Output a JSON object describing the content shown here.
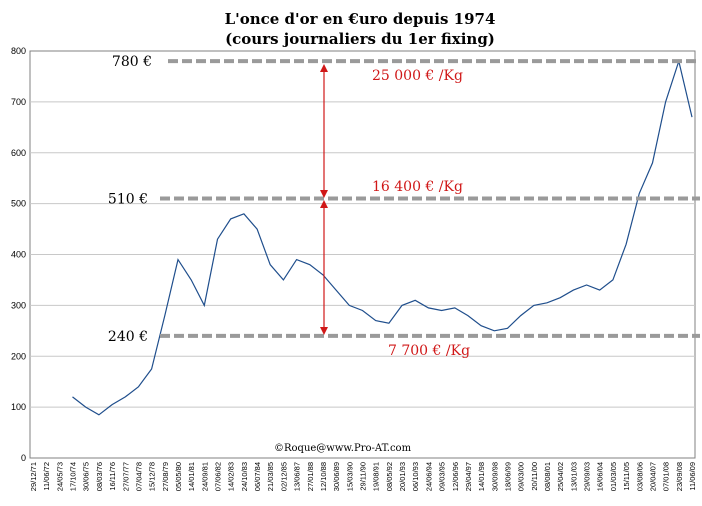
{
  "chart_data": {
    "type": "line",
    "title": "L'once d'or en €uro depuis 1974",
    "subtitle": "(cours journaliers du 1er fixing)",
    "xlabel": "",
    "ylabel": "",
    "ylim": [
      0,
      800
    ],
    "y_ticks": [
      0,
      100,
      200,
      300,
      400,
      500,
      600,
      700,
      800
    ],
    "grid": true,
    "x_ticks": [
      "29/12/71",
      "11/06/72",
      "24/05/73",
      "17/10/74",
      "30/06/75",
      "08/03/76",
      "16/11/76",
      "27/07/77",
      "07/04/78",
      "15/12/78",
      "27/08/79",
      "05/05/80",
      "14/01/81",
      "24/09/81",
      "07/06/82",
      "14/02/83",
      "24/10/83",
      "06/07/84",
      "21/03/85",
      "02/12/85",
      "13/06/87",
      "27/01/88",
      "12/10/88",
      "30/06/89",
      "15/03/90",
      "29/11/90",
      "19/08/91",
      "08/05/92",
      "20/01/93",
      "06/10/93",
      "24/06/94",
      "09/03/95",
      "12/06/96",
      "29/04/97",
      "14/01/98",
      "30/09/98",
      "18/06/99",
      "09/03/00",
      "20/11/00",
      "08/08/01",
      "25/04/02",
      "13/01/03",
      "29/09/03",
      "16/06/04",
      "01/03/05",
      "15/11/05",
      "03/08/06",
      "20/04/07",
      "07/01/08",
      "23/09/08",
      "11/06/09"
    ],
    "series": [
      {
        "x": [
          "17/10/74",
          "30/06/75",
          "08/03/76",
          "16/11/76",
          "27/07/77",
          "07/04/78",
          "15/12/78",
          "27/08/79",
          "05/05/80",
          "14/01/81",
          "24/09/81",
          "07/06/82",
          "14/02/83",
          "24/10/83",
          "06/07/84",
          "21/03/85",
          "02/12/85",
          "13/06/87",
          "27/01/88",
          "12/10/88",
          "30/06/89",
          "15/03/90",
          "29/11/90",
          "19/08/91",
          "08/05/92",
          "20/01/93",
          "06/10/93",
          "24/06/94",
          "09/03/95",
          "12/06/96",
          "29/04/97",
          "14/01/98",
          "30/09/98",
          "18/06/99",
          "09/03/00",
          "20/11/00",
          "08/08/01",
          "25/04/02",
          "13/01/03",
          "29/09/03",
          "16/06/04",
          "01/03/05",
          "15/11/05",
          "03/08/06",
          "20/04/07",
          "07/01/08",
          "23/09/08",
          "11/06/09"
        ],
        "values": [
          120,
          100,
          85,
          105,
          120,
          140,
          175,
          280,
          390,
          350,
          300,
          430,
          470,
          480,
          450,
          380,
          350,
          390,
          380,
          360,
          330,
          300,
          290,
          270,
          265,
          300,
          310,
          295,
          290,
          295,
          280,
          260,
          250,
          255,
          280,
          300,
          305,
          315,
          330,
          340,
          330,
          350,
          420,
          520,
          580,
          700,
          780,
          670
        ],
        "color": "#1f4e8c"
      }
    ],
    "reference_lines": [
      {
        "value": 780,
        "label": "780 €",
        "color": "#9a9a9a"
      },
      {
        "value": 510,
        "label": "510 €",
        "color": "#9a9a9a"
      },
      {
        "value": 240,
        "label": "240 €",
        "color": "#9a9a9a"
      }
    ],
    "annotations": [
      {
        "text": "25 000 € /Kg",
        "color": "#d01818"
      },
      {
        "text": "16 400 € /Kg",
        "color": "#d01818"
      },
      {
        "text": "7 700 € /Kg",
        "color": "#d01818"
      },
      {
        "text": "©Roque@www.Pro-AT.com",
        "color": "#000000"
      }
    ]
  }
}
